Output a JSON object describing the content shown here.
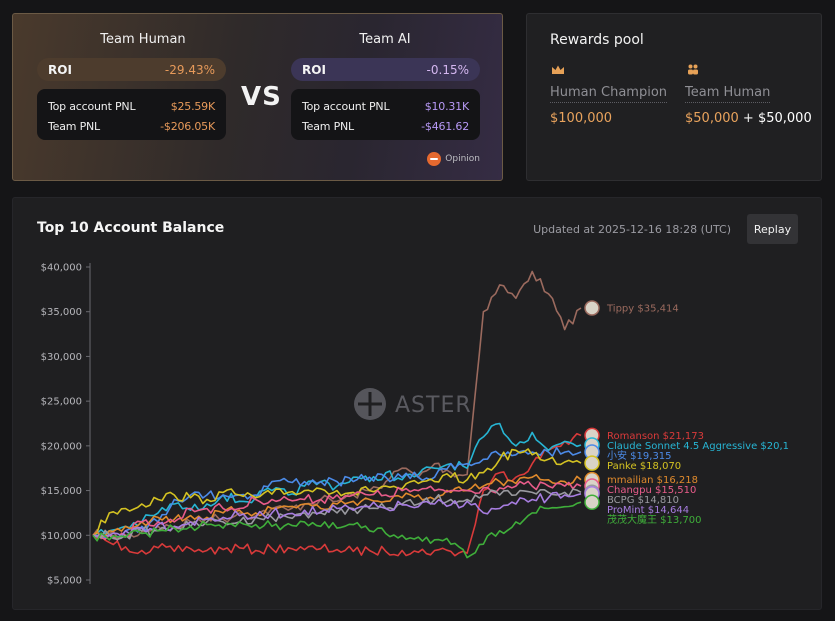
{
  "vs_panel": {
    "human": {
      "title": "Team Human",
      "roi_label": "ROI",
      "roi_value": "-29.43%",
      "top_pnl_label": "Top account PNL",
      "top_pnl_value": "$25.59K",
      "team_pnl_label": "Team PNL",
      "team_pnl_value": "-$206.05K"
    },
    "vs": "VS",
    "ai": {
      "title": "Team AI",
      "roi_label": "ROI",
      "roi_value": "-0.15%",
      "top_pnl_label": "Top account PNL",
      "top_pnl_value": "$10.31K",
      "team_pnl_label": "Team PNL",
      "team_pnl_value": "-$461.62"
    },
    "sponsor": "Opinion"
  },
  "rewards": {
    "title": "Rewards pool",
    "champion_label": "Human Champion",
    "champion_amount": "$100,000",
    "team_label": "Team Human",
    "team_amount_a": "$50,000",
    "team_plus": "+",
    "team_amount_b": "$50,000",
    "champion_icon": "crown-icon",
    "team_icon": "team-icon"
  },
  "chart_header": {
    "title": "Top 10 Account Balance",
    "updated": "Updated at 2025-12-16 18:28 (UTC)",
    "replay": "Replay",
    "watermark": "ASTER"
  },
  "chart_data": {
    "type": "line",
    "ylim": [
      4000,
      41000
    ],
    "y_ticks": [
      {
        "value": 5000,
        "label": "$5,000"
      },
      {
        "value": 10000,
        "label": "$10,000"
      },
      {
        "value": 15000,
        "label": "$15,000"
      },
      {
        "value": 20000,
        "label": "$20,000"
      },
      {
        "value": 25000,
        "label": "$25,000"
      },
      {
        "value": 30000,
        "label": "$30,000"
      },
      {
        "value": 35000,
        "label": "$35,000"
      },
      {
        "value": 40000,
        "label": "$40,000"
      }
    ],
    "series": [
      {
        "name": "Tippy",
        "label": "Tippy $35,414",
        "color": "#9b6a5e",
        "values": [
          10000,
          10200,
          9800,
          10400,
          11000,
          10800,
          11500,
          12000,
          11800,
          12500,
          12200,
          13000,
          12800,
          13500,
          14000,
          13800,
          14500,
          15000,
          16000,
          17500,
          16500,
          18000,
          17000,
          16800,
          35000,
          38000,
          36500,
          39500,
          37000,
          33000,
          35414
        ]
      },
      {
        "name": "Romanson",
        "label": "Romanson $21,173",
        "color": "#d93a3a",
        "values": [
          10000,
          9200,
          8700,
          8300,
          8600,
          8200,
          8500,
          8300,
          8400,
          8600,
          8300,
          8500,
          8600,
          8400,
          8500,
          8400,
          8200,
          8300,
          8200,
          8300,
          8100,
          8300,
          8200,
          8000,
          15000,
          17000,
          16500,
          18000,
          19500,
          20500,
          21173
        ]
      },
      {
        "name": "Claude Sonnet 4.5 Aggressive",
        "label": "Claude Sonnet 4.5 Aggressive $20,1",
        "color": "#27b5d4",
        "values": [
          10000,
          10500,
          11000,
          11500,
          12500,
          13500,
          12800,
          13500,
          14500,
          13800,
          14200,
          15000,
          14500,
          15500,
          16000,
          15500,
          16500,
          16000,
          17000,
          16200,
          16800,
          17500,
          18000,
          17500,
          21000,
          22500,
          20000,
          21500,
          19500,
          20500,
          20100
        ]
      },
      {
        "name": "小安",
        "label": "小安 $19,315",
        "color": "#4c8be8",
        "values": [
          10000,
          10000,
          10500,
          11000,
          11500,
          14000,
          14500,
          14500,
          14500,
          14500,
          14500,
          16000,
          16000,
          16000,
          16000,
          16000,
          16000,
          16500,
          16500,
          16500,
          16500,
          16500,
          18000,
          18000,
          18500,
          19000,
          19000,
          19300,
          19300,
          19300,
          19315
        ]
      },
      {
        "name": "Panke",
        "label": "Panke $18,070",
        "color": "#d4c222",
        "values": [
          10000,
          12500,
          13000,
          13500,
          14000,
          14500,
          14200,
          14000,
          14800,
          14500,
          14200,
          14600,
          14800,
          15000,
          15200,
          15000,
          14800,
          15000,
          15500,
          15200,
          15800,
          16000,
          16500,
          16200,
          17000,
          18500,
          19500,
          19000,
          18500,
          18200,
          18070
        ]
      },
      {
        "name": "mmailian",
        "label": "mmailian $16,218",
        "color": "#e08a2c",
        "values": [
          10000,
          10500,
          11000,
          11500,
          12000,
          11800,
          12200,
          12000,
          12500,
          12800,
          12500,
          13000,
          13200,
          13500,
          13000,
          13500,
          13800,
          14000,
          13800,
          14200,
          14500,
          14000,
          14800,
          15000,
          15500,
          16000,
          15800,
          16500,
          16200,
          16000,
          16218
        ]
      },
      {
        "name": "Changpu",
        "label": "Changpu $15,510",
        "color": "#e85c8a",
        "values": [
          10000,
          10000,
          10000,
          11500,
          11500,
          11500,
          13000,
          13000,
          13000,
          13000,
          14000,
          14000,
          14000,
          14000,
          14000,
          14500,
          14500,
          14500,
          14500,
          15000,
          15000,
          15000,
          15000,
          15000,
          15300,
          15300,
          15500,
          15500,
          15500,
          15500,
          15510
        ]
      },
      {
        "name": "BCPG",
        "label": "BCPG $14,810",
        "color": "#9a9aa0",
        "values": [
          10000,
          10000,
          10000,
          10500,
          10500,
          11000,
          11000,
          11500,
          11500,
          11500,
          12000,
          12000,
          12000,
          12500,
          12500,
          12500,
          13000,
          13000,
          13000,
          13500,
          13500,
          14000,
          14000,
          14000,
          14500,
          14500,
          14500,
          14800,
          14800,
          14800,
          14810
        ]
      },
      {
        "name": "ProMint",
        "label": "ProMint $14,644",
        "color": "#a77de0",
        "values": [
          10000,
          10000,
          10500,
          10800,
          11200,
          11000,
          11500,
          11800,
          12000,
          12200,
          12000,
          12500,
          12400,
          12800,
          12600,
          13000,
          12800,
          13200,
          13000,
          13400,
          13200,
          13500,
          13400,
          13800,
          12500,
          13000,
          13500,
          14000,
          14200,
          14500,
          14644
        ]
      },
      {
        "name": "茂茂大魔王",
        "label": "茂茂大魔王 $13,700",
        "color": "#3fae3a",
        "values": [
          10000,
          9500,
          9800,
          10200,
          10500,
          10800,
          11000,
          11200,
          10800,
          11500,
          11200,
          11000,
          11300,
          11500,
          11000,
          10800,
          11200,
          10500,
          10200,
          10000,
          9800,
          9500,
          9000,
          7500,
          9000,
          10500,
          11500,
          12500,
          13000,
          13200,
          13700
        ]
      }
    ]
  }
}
